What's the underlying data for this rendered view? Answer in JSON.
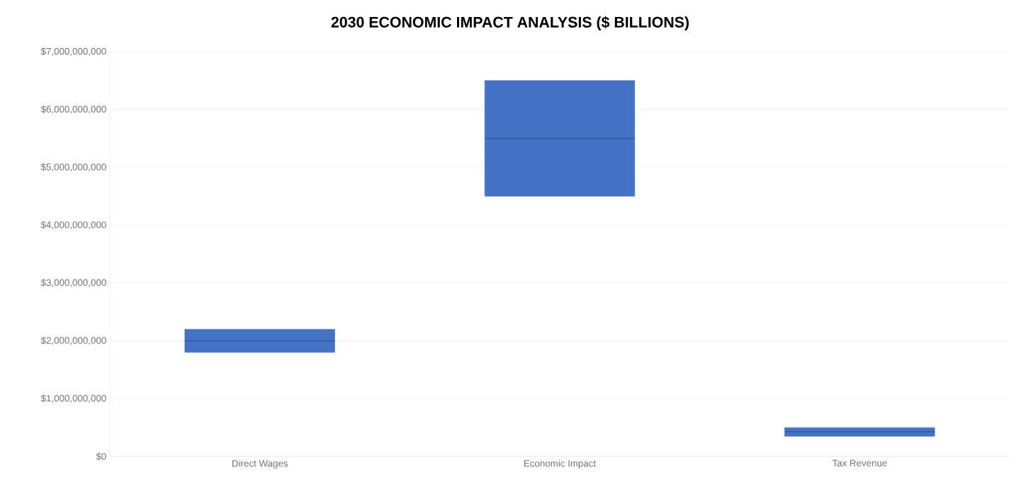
{
  "chart_data": {
    "type": "box",
    "title": "2030 ECONOMIC IMPACT ANALYSIS ($ BILLIONS)",
    "categories": [
      "Direct Wages",
      "Economic Impact",
      "Tax Revenue"
    ],
    "boxes": [
      {
        "low": 1800000000,
        "q1": 1800000000,
        "median": 2000000000,
        "q3": 2200000000,
        "high": 2200000000
      },
      {
        "low": 4500000000,
        "q1": 4500000000,
        "median": 5500000000,
        "q3": 6500000000,
        "high": 6500000000
      },
      {
        "low": 350000000,
        "q1": 350000000,
        "median": 430000000,
        "q3": 500000000,
        "high": 500000000
      }
    ],
    "color": "#4472c4",
    "ylim": [
      0,
      7000000000
    ],
    "yticks": [
      {
        "value": 0,
        "label": "$0"
      },
      {
        "value": 1000000000,
        "label": "$1,000,000,000"
      },
      {
        "value": 2000000000,
        "label": "$2,000,000,000"
      },
      {
        "value": 3000000000,
        "label": "$3,000,000,000"
      },
      {
        "value": 4000000000,
        "label": "$4,000,000,000"
      },
      {
        "value": 5000000000,
        "label": "$5,000,000,000"
      },
      {
        "value": 6000000000,
        "label": "$6,000,000,000"
      },
      {
        "value": 7000000000,
        "label": "$7,000,000,000"
      }
    ],
    "grid": "y"
  }
}
